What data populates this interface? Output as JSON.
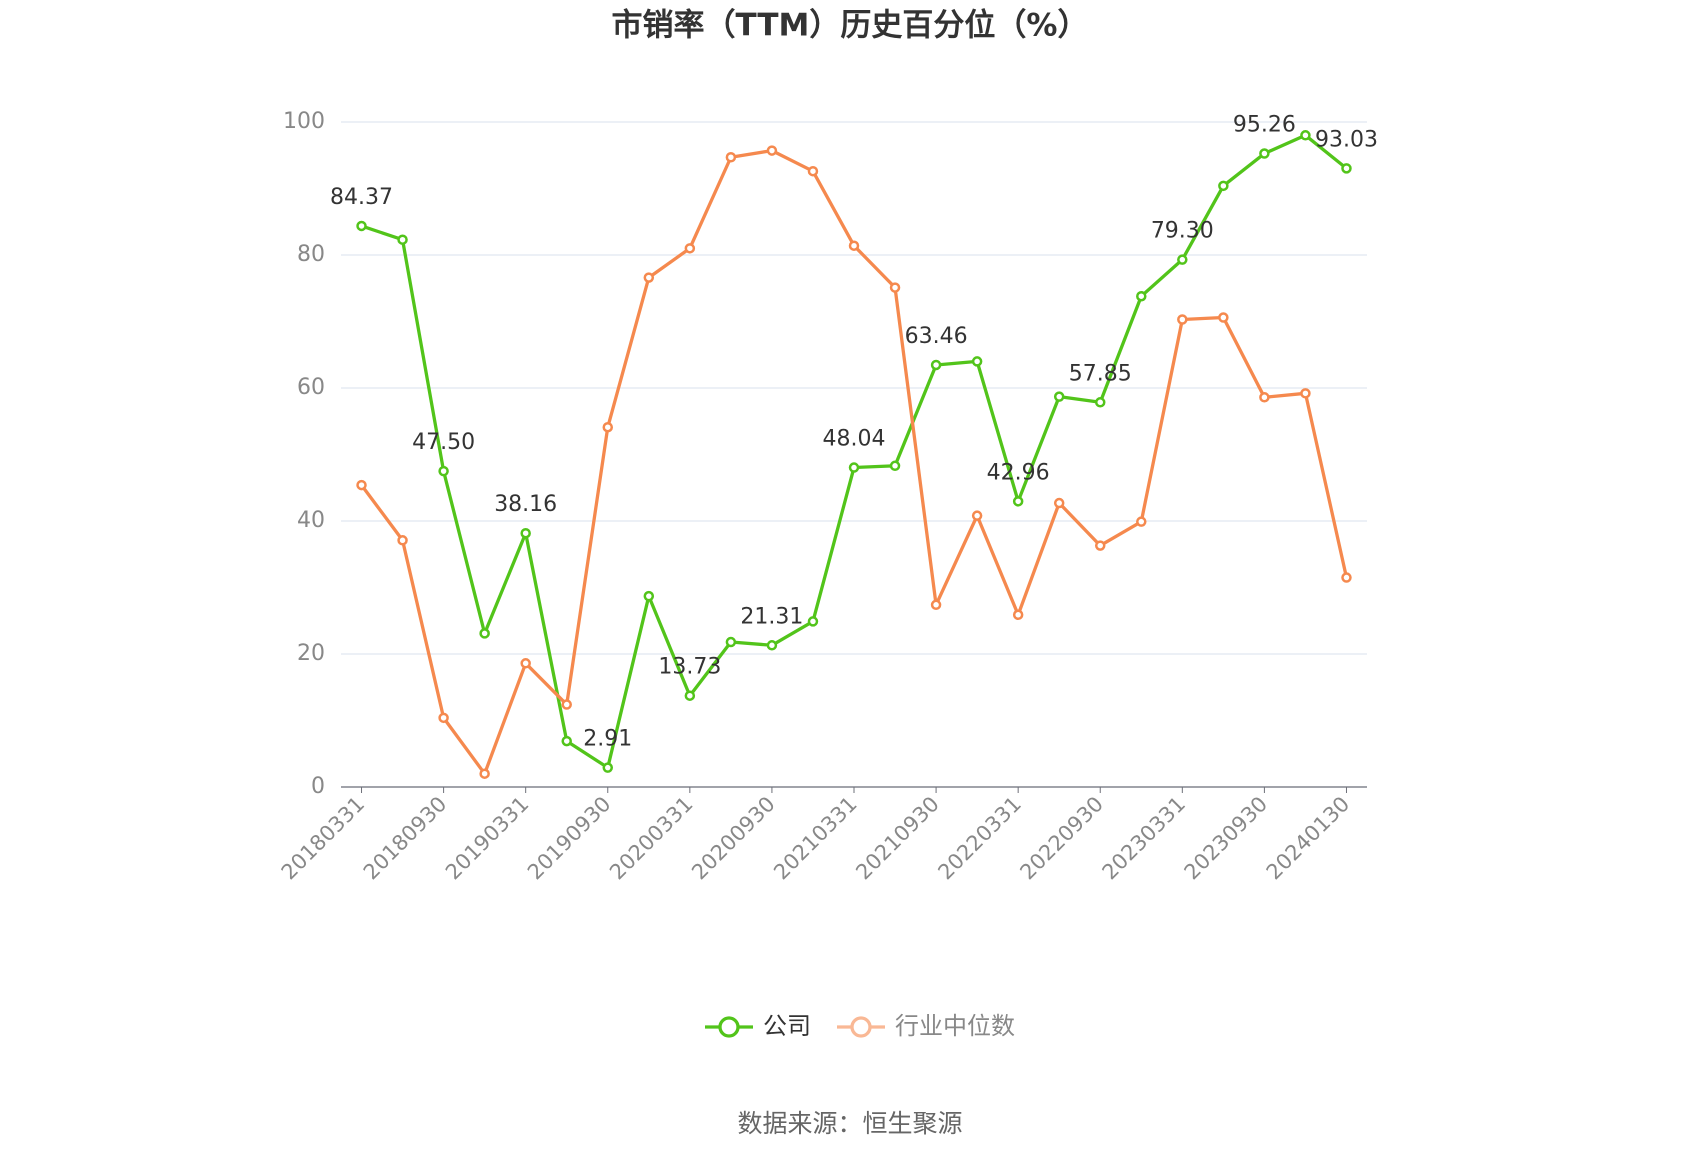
{
  "chart_data": {
    "type": "line",
    "title": "市销率（TTM）历史百分位（%）",
    "categories": [
      "20180331",
      null,
      "20180930",
      null,
      "20190331",
      null,
      "20190930",
      null,
      "20200331",
      null,
      "20200930",
      null,
      "20210331",
      null,
      "20210930",
      null,
      "20220331",
      null,
      "20220930",
      null,
      "20230331",
      null,
      "20230930",
      null,
      "20240130"
    ],
    "series": [
      {
        "name": "公司",
        "color": "#52c41a",
        "values": [
          84.37,
          82.3,
          47.5,
          23.1,
          38.16,
          6.9,
          2.91,
          28.7,
          13.73,
          21.8,
          21.31,
          24.9,
          48.04,
          48.3,
          63.46,
          64.0,
          42.96,
          58.7,
          57.85,
          73.8,
          79.3,
          90.4,
          95.26,
          98.0,
          93.03
        ],
        "value_labels": [
          "84.37",
          null,
          "47.50",
          null,
          "38.16",
          null,
          "2.91",
          null,
          "13.73",
          null,
          "21.31",
          null,
          "48.04",
          null,
          "63.46",
          null,
          "42.96",
          null,
          "57.85",
          null,
          "79.30",
          null,
          "95.26",
          null,
          "93.03"
        ]
      },
      {
        "name": "行业中位数",
        "color": "#f5894e",
        "values": [
          45.4,
          37.1,
          10.4,
          2.0,
          18.6,
          12.4,
          54.1,
          76.6,
          81.0,
          94.7,
          95.7,
          92.6,
          81.4,
          75.1,
          27.4,
          40.8,
          25.9,
          42.7,
          36.3,
          39.9,
          70.3,
          70.6,
          58.6,
          59.2,
          31.5
        ]
      }
    ],
    "ylim": [
      0,
      100
    ],
    "yticks": [
      0,
      20,
      40,
      60,
      80,
      100
    ],
    "grid": true,
    "legend": "bottom",
    "source": "数据来源：恒生聚源"
  }
}
